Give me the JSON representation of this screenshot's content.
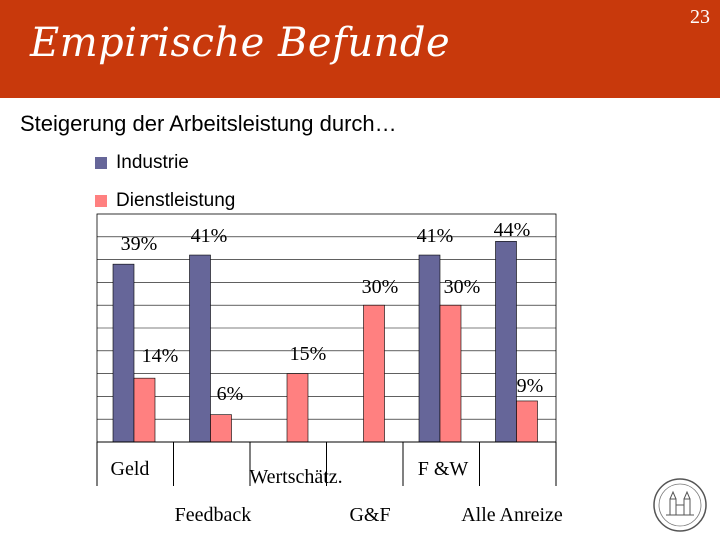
{
  "slide": {
    "title": "Empirische Befunde",
    "page_number": "23",
    "subtitle": "Steigerung der Arbeitsleistung durch…",
    "header_color": "#c8390c"
  },
  "chart_data": {
    "type": "bar",
    "categories": [
      "Geld",
      "Feedback",
      "Wertschätz.",
      "G&F",
      "F &W",
      "Alle Anreize"
    ],
    "series": [
      {
        "name": "Industrie",
        "color": "#666699",
        "values": [
          39,
          41,
          null,
          null,
          41,
          44
        ],
        "labels": [
          "39%",
          "41%",
          "",
          "",
          "41%",
          "44%"
        ]
      },
      {
        "name": "Dienstleistung",
        "color": "#ff8080",
        "values": [
          14,
          6,
          15,
          30,
          30,
          9
        ],
        "labels": [
          "14%",
          "6%",
          "15%",
          "30%",
          "30%",
          "9%"
        ]
      }
    ],
    "ylim": [
      0,
      50
    ],
    "grid": true,
    "legend": "top-left"
  }
}
